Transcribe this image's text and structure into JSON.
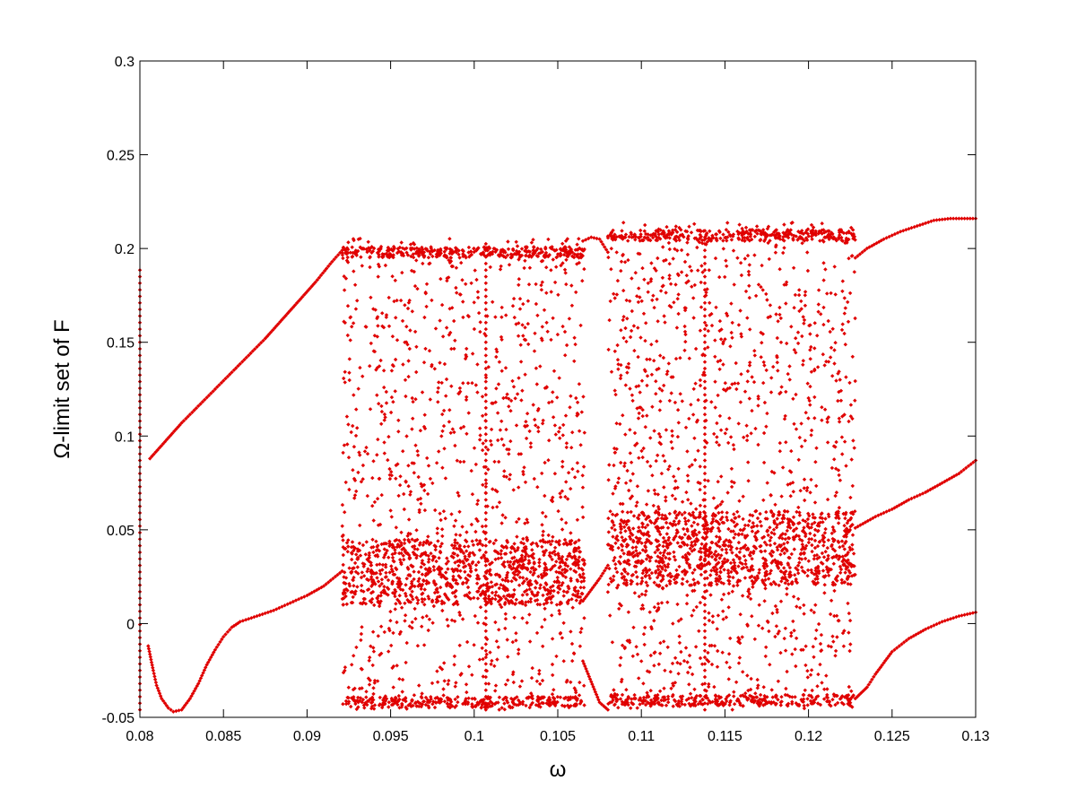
{
  "chart_data": {
    "type": "scatter",
    "title": "",
    "xlabel": "ω",
    "ylabel": "Ω-limit set of F",
    "xlim": [
      0.08,
      0.13
    ],
    "ylim": [
      -0.05,
      0.3
    ],
    "grid": false,
    "legend": "none",
    "marker": "diamond",
    "color": "#e00000",
    "xticks": [
      "0.08",
      "0.085",
      "0.09",
      "0.095",
      "0.1",
      "0.105",
      "0.11",
      "0.115",
      "0.12",
      "0.125",
      "0.13"
    ],
    "xtick_values": [
      0.08,
      0.085,
      0.09,
      0.095,
      0.1,
      0.105,
      0.11,
      0.115,
      0.12,
      0.125,
      0.13
    ],
    "yticks": [
      "-0.05",
      "0",
      "0.05",
      "0.1",
      "0.15",
      "0.2",
      "0.25",
      "0.3"
    ],
    "ytick_values": [
      -0.05,
      0,
      0.05,
      0.1,
      0.15,
      0.2,
      0.25,
      0.3
    ],
    "branches": [
      {
        "name": "",
        "points": [
          [
            0.0806,
            0.088
          ],
          [
            0.0815,
            0.097
          ],
          [
            0.0825,
            0.107
          ],
          [
            0.0835,
            0.116
          ],
          [
            0.0845,
            0.125
          ],
          [
            0.0855,
            0.134
          ],
          [
            0.0865,
            0.143
          ],
          [
            0.0875,
            0.152
          ],
          [
            0.0885,
            0.162
          ],
          [
            0.0895,
            0.172
          ],
          [
            0.0905,
            0.182
          ],
          [
            0.0915,
            0.193
          ],
          [
            0.0921,
            0.199
          ]
        ]
      },
      {
        "name": "",
        "points": [
          [
            0.0805,
            -0.012
          ],
          [
            0.0808,
            -0.025
          ],
          [
            0.081,
            -0.033
          ],
          [
            0.0813,
            -0.04
          ],
          [
            0.0817,
            -0.045
          ],
          [
            0.082,
            -0.047
          ],
          [
            0.0825,
            -0.046
          ],
          [
            0.083,
            -0.04
          ],
          [
            0.0835,
            -0.032
          ],
          [
            0.084,
            -0.022
          ],
          [
            0.0845,
            -0.014
          ],
          [
            0.085,
            -0.007
          ],
          [
            0.0855,
            -0.002
          ],
          [
            0.086,
            0.001
          ],
          [
            0.087,
            0.004
          ],
          [
            0.088,
            0.007
          ],
          [
            0.089,
            0.011
          ],
          [
            0.09,
            0.015
          ],
          [
            0.091,
            0.02
          ],
          [
            0.0921,
            0.028
          ]
        ]
      },
      {
        "name": "",
        "points": [
          [
            0.1065,
            0.204
          ],
          [
            0.107,
            0.206
          ],
          [
            0.1075,
            0.205
          ],
          [
            0.108,
            0.198
          ]
        ]
      },
      {
        "name": "",
        "points": [
          [
            0.1065,
            0.012
          ],
          [
            0.107,
            0.018
          ],
          [
            0.1075,
            0.024
          ],
          [
            0.108,
            0.031
          ]
        ]
      },
      {
        "name": "",
        "points": [
          [
            0.1065,
            -0.02
          ],
          [
            0.107,
            -0.031
          ],
          [
            0.1075,
            -0.042
          ],
          [
            0.108,
            -0.046
          ]
        ]
      },
      {
        "name": "",
        "points": [
          [
            0.1228,
            0.195
          ],
          [
            0.1235,
            0.2
          ],
          [
            0.1245,
            0.205
          ],
          [
            0.1255,
            0.209
          ],
          [
            0.1265,
            0.212
          ],
          [
            0.1275,
            0.215
          ],
          [
            0.1285,
            0.216
          ],
          [
            0.13,
            0.216
          ]
        ]
      },
      {
        "name": "",
        "points": [
          [
            0.1228,
            0.051
          ],
          [
            0.124,
            0.057
          ],
          [
            0.125,
            0.061
          ],
          [
            0.126,
            0.066
          ],
          [
            0.127,
            0.07
          ],
          [
            0.128,
            0.075
          ],
          [
            0.129,
            0.08
          ],
          [
            0.13,
            0.087
          ]
        ]
      },
      {
        "name": "",
        "points": [
          [
            0.1228,
            -0.04
          ],
          [
            0.1235,
            -0.034
          ],
          [
            0.124,
            -0.027
          ],
          [
            0.1245,
            -0.021
          ],
          [
            0.125,
            -0.015
          ],
          [
            0.126,
            -0.008
          ],
          [
            0.127,
            -0.003
          ],
          [
            0.128,
            0.001
          ],
          [
            0.129,
            0.004
          ],
          [
            0.13,
            0.006
          ]
        ]
      }
    ],
    "chaotic_regions": [
      {
        "x": [
          0.0921,
          0.1066
        ],
        "y": [
          -0.046,
          0.206
        ],
        "band_edges": [
          0.201,
          -0.045
        ],
        "dense_band": [
          0.01,
          0.045
        ],
        "points": 2600
      },
      {
        "x": [
          0.108,
          0.1228
        ],
        "y": [
          -0.046,
          0.214
        ],
        "band_edges": [
          0.21,
          -0.044
        ],
        "dense_band": [
          0.02,
          0.06
        ],
        "points": 2800
      }
    ],
    "vertical_segments": [
      {
        "x": 0.08,
        "y": [
          -0.046,
          0.19
        ]
      },
      {
        "x": 0.1007,
        "y": [
          -0.046,
          0.203
        ]
      },
      {
        "x": 0.1138,
        "y": [
          -0.046,
          0.21
        ]
      }
    ]
  }
}
